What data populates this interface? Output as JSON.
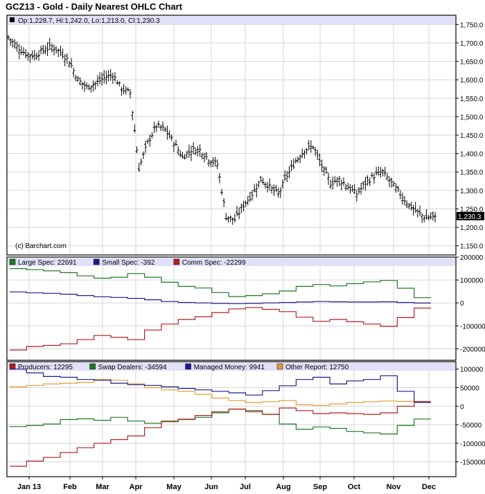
{
  "chart": {
    "title": "GCZ13 - Gold - Daily Nearest OHLC Chart",
    "ohlc_label": "Op:1,228.7, Hi:1,242.0, Lo:1,213.0, Cl:1,230.3",
    "last_price_label": "1,230.3",
    "credit": "(c) Barchart.com"
  },
  "x_axis": {
    "ticks": [
      "Jan 13",
      "Feb",
      "Mar",
      "Apr",
      "May",
      "Jun",
      "Jul",
      "Aug",
      "Sep",
      "Oct",
      "Nov",
      "Dec"
    ]
  },
  "colors": {
    "legend_band": "#e0e0f8",
    "grid": "#d6d6d6",
    "price": "#000000",
    "large_spec": "#1e7a1e",
    "small_spec": "#1a1a8c",
    "comm_spec": "#b41e1e",
    "producers": "#b41e1e",
    "swap_dealers": "#1e7a1e",
    "managed_money": "#1a1a8c",
    "other_report": "#e39a2e"
  },
  "chart_data": [
    {
      "type": "ohlc",
      "title": "GCZ13 - Gold - Daily Nearest OHLC Chart",
      "last_bar": {
        "open": 1228.7,
        "high": 1242.0,
        "low": 1213.0,
        "close": 1230.3
      },
      "ylim": [
        1125,
        1775
      ],
      "y_ticks": [
        "1,150.0",
        "1,200.0",
        "1,250.0",
        "1,300.0",
        "1,350.0",
        "1,400.0",
        "1,450.0",
        "1,500.0",
        "1,550.0",
        "1,600.0",
        "1,650.0",
        "1,700.0",
        "1,750.0"
      ],
      "x": [
        "Jan 2",
        "Jan 9",
        "Jan 16",
        "Jan 23",
        "Jan 30",
        "Feb 6",
        "Feb 13",
        "Feb 20",
        "Feb 27",
        "Mar 6",
        "Mar 13",
        "Mar 20",
        "Mar 27",
        "Apr 3",
        "Apr 10",
        "Apr 15",
        "Apr 22",
        "Apr 29",
        "May 6",
        "May 13",
        "May 20",
        "May 27",
        "Jun 3",
        "Jun 10",
        "Jun 17",
        "Jun 24",
        "Jul 1",
        "Jul 8",
        "Jul 15",
        "Jul 22",
        "Jul 29",
        "Aug 5",
        "Aug 12",
        "Aug 19",
        "Aug 26",
        "Sep 3",
        "Sep 10",
        "Sep 17",
        "Sep 24",
        "Oct 1",
        "Oct 8",
        "Oct 15",
        "Oct 22",
        "Oct 29",
        "Nov 5",
        "Nov 12",
        "Nov 19",
        "Nov 26",
        "Dec 3",
        "Dec 6"
      ],
      "close": [
        1715,
        1690,
        1670,
        1665,
        1680,
        1690,
        1675,
        1650,
        1600,
        1580,
        1590,
        1605,
        1615,
        1575,
        1565,
        1360,
        1430,
        1475,
        1465,
        1430,
        1390,
        1410,
        1410,
        1385,
        1370,
        1230,
        1220,
        1260,
        1290,
        1330,
        1310,
        1290,
        1340,
        1380,
        1410,
        1420,
        1365,
        1320,
        1330,
        1310,
        1290,
        1320,
        1340,
        1350,
        1320,
        1290,
        1260,
        1240,
        1225,
        1230
      ]
    },
    {
      "type": "line",
      "y_ticks": [
        "200000",
        "100000",
        "0",
        "-100000",
        "-200000"
      ],
      "ylim": [
        -250000,
        200000
      ],
      "x": [
        "Jan 1",
        "Jan 15",
        "Jan 29",
        "Feb 12",
        "Feb 26",
        "Mar 12",
        "Mar 26",
        "Apr 9",
        "Apr 23",
        "May 7",
        "May 21",
        "Jun 4",
        "Jun 18",
        "Jul 2",
        "Jul 16",
        "Jul 30",
        "Aug 13",
        "Aug 27",
        "Sep 10",
        "Sep 24",
        "Oct 8",
        "Oct 22",
        "Nov 5",
        "Nov 19",
        "Dec 3"
      ],
      "series": [
        {
          "name": "Large Spec: 22691",
          "values": [
            150000,
            145000,
            140000,
            132000,
            118000,
            108000,
            112000,
            128000,
            112000,
            90000,
            72000,
            65000,
            45000,
            28000,
            32000,
            40000,
            52000,
            72000,
            80000,
            74000,
            84000,
            92000,
            98000,
            64000,
            22691
          ]
        },
        {
          "name": "Small Spec: -392",
          "values": [
            48000,
            44000,
            42000,
            38000,
            32000,
            27000,
            24000,
            20000,
            14000,
            6000,
            2000,
            0,
            -2000,
            -3000,
            -2000,
            0,
            2000,
            4000,
            6000,
            5000,
            4000,
            4000,
            5000,
            2000,
            -392
          ]
        },
        {
          "name": "Comm Spec: -22299",
          "values": [
            -205000,
            -190000,
            -185000,
            -178000,
            -160000,
            -142000,
            -150000,
            -160000,
            -118000,
            -92000,
            -72000,
            -60000,
            -42000,
            -26000,
            -20000,
            -28000,
            -38000,
            -62000,
            -80000,
            -72000,
            -82000,
            -92000,
            -102000,
            -64000,
            -22299
          ]
        }
      ]
    },
    {
      "type": "line",
      "y_ticks": [
        "100000",
        "50000",
        "0",
        "-50000",
        "-100000",
        "-150000"
      ],
      "ylim": [
        -190000,
        120000
      ],
      "x": [
        "Jan 1",
        "Jan 15",
        "Jan 29",
        "Feb 12",
        "Feb 26",
        "Mar 12",
        "Mar 26",
        "Apr 9",
        "Apr 23",
        "May 7",
        "May 21",
        "Jun 4",
        "Jun 18",
        "Jul 2",
        "Jul 16",
        "Jul 30",
        "Aug 13",
        "Aug 27",
        "Sep 10",
        "Sep 24",
        "Oct 8",
        "Oct 22",
        "Nov 5",
        "Nov 19",
        "Dec 3"
      ],
      "series": [
        {
          "name": "Producers: 12295",
          "values": [
            -162000,
            -148000,
            -138000,
            -125000,
            -112000,
            -100000,
            -90000,
            -80000,
            -58000,
            -42000,
            -35000,
            -25000,
            -15000,
            -8000,
            -15000,
            -22000,
            -5000,
            -12000,
            -20000,
            -18000,
            -20000,
            -22000,
            -18000,
            0,
            12295
          ]
        },
        {
          "name": "Swap Dealers: -34594",
          "values": [
            -55000,
            -52000,
            -48000,
            -36000,
            -34000,
            -38000,
            -30000,
            -40000,
            -46000,
            -40000,
            -36000,
            -30000,
            -18000,
            -8000,
            -12000,
            -22000,
            -48000,
            -62000,
            -56000,
            -60000,
            -68000,
            -72000,
            -75000,
            -52000,
            -34594
          ]
        },
        {
          "name": "Managed Money: 9941",
          "values": [
            100000,
            90000,
            80000,
            78000,
            72000,
            70000,
            62000,
            58000,
            56000,
            52000,
            48000,
            44000,
            40000,
            36000,
            30000,
            42000,
            55000,
            72000,
            78000,
            60000,
            68000,
            72000,
            82000,
            40000,
            9941
          ]
        },
        {
          "name": "Other Report: 12750",
          "values": [
            52000,
            56000,
            60000,
            62000,
            64000,
            72000,
            70000,
            60000,
            50000,
            44000,
            40000,
            32000,
            22000,
            15000,
            10000,
            12000,
            15000,
            4000,
            2000,
            6000,
            10000,
            12000,
            14000,
            12750,
            12750
          ]
        }
      ]
    }
  ]
}
